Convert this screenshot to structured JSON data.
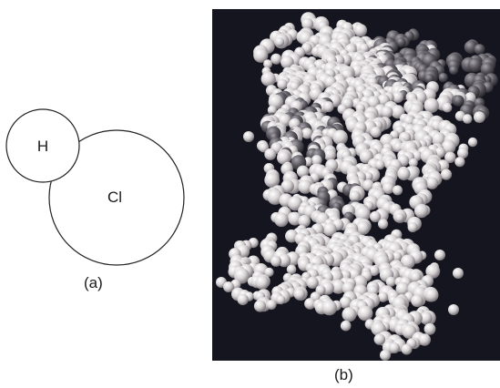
{
  "figure": {
    "panel_a": {
      "atoms": [
        {
          "symbol": "H"
        },
        {
          "symbol": "Cl"
        }
      ],
      "caption": "(a)"
    },
    "panel_b": {
      "caption": "(b)",
      "background_color": "#15151f",
      "atom_colors": {
        "light": "#d8d4d6",
        "dark": "#5a585e"
      }
    }
  }
}
